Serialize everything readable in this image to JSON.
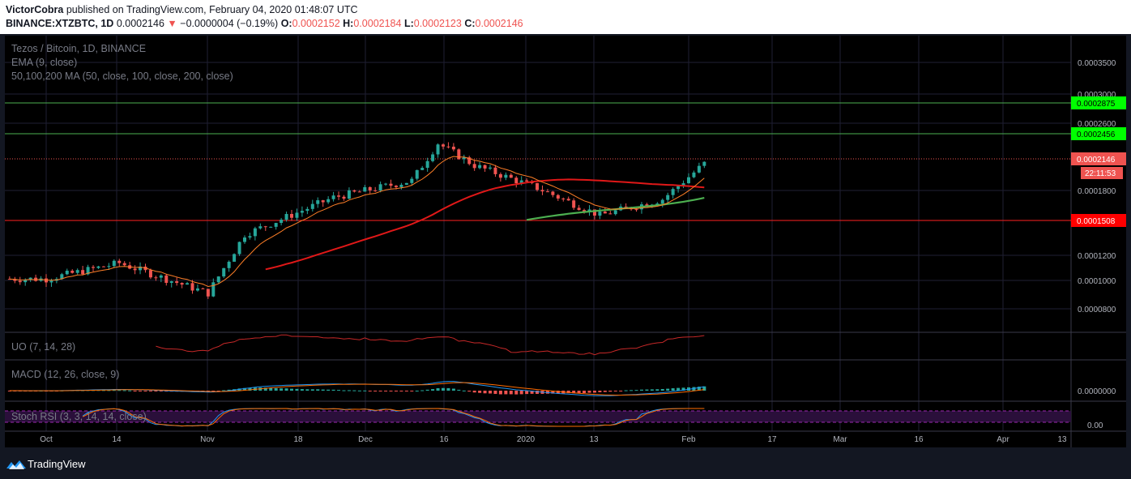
{
  "header": {
    "publisher": "VictorCobra",
    "published_text": "published on TradingView.com, February 04, 2020 01:48:07 UTC",
    "symbol": "BINANCE:XTZBTC, 1D",
    "price": "0.0002146",
    "change_arrow": "▼",
    "change": "−0.0000004 (−0.19%)",
    "o_label": "O:",
    "o_value": "0.0002152",
    "h_label": "H:",
    "h_value": "0.0002184",
    "l_label": "L:",
    "l_value": "0.0002123",
    "c_label": "C:",
    "c_value": "0.0002146"
  },
  "legend": {
    "title": "Tezos / Bitcoin, 1D, BINANCE",
    "ema": "EMA (9, close)",
    "ma": "50,100,200 MA (50, close, 100, close, 200, close)"
  },
  "indicators": {
    "uo": "UO (7, 14, 28)",
    "macd": "MACD (12, 26, close, 9)",
    "stoch": "Stoch RSI (3, 3, 14, 14, close)",
    "macd_value": "0.0000000",
    "stoch_value": "0.00"
  },
  "price_labels": {
    "ticks": [
      "0.0003500",
      "0.0003000",
      "0.0002600",
      "0.0001800",
      "0.0001200",
      "0.0001000",
      "0.0000800"
    ],
    "level1": "0.0002875",
    "level2": "0.0002456",
    "current": "0.0002146",
    "countdown": "22:11:53",
    "level3": "0.0001508"
  },
  "time_labels": [
    "Oct",
    "14",
    "Nov",
    "18",
    "Dec",
    "16",
    "2020",
    "13",
    "Feb",
    "17",
    "Mar",
    "16",
    "Apr",
    "13"
  ],
  "footer": {
    "brand": "TradingView"
  },
  "colors": {
    "green_level": "#4caf50",
    "bright_green": "#00ff00",
    "red_level": "#ff0000",
    "up": "#26a69a",
    "down": "#ef5350",
    "ema": "#ff7f27",
    "ma50": "#e91e1e",
    "ma100": "#4caf50"
  },
  "chart_data": {
    "type": "candlestick",
    "scale": "log",
    "series": [
      {
        "name": "EMA (9, close)"
      },
      {
        "name": "50,100,200 MA (50, close, 100, close, 200, close)"
      }
    ],
    "horizontal_levels": [
      0.0002875,
      0.0002456,
      0.0001508
    ],
    "current_price": 0.0002146,
    "close_approx": [
      {
        "date": "2019-10-01",
        "close": 0.000101
      },
      {
        "date": "2019-10-15",
        "close": 0.000112
      },
      {
        "date": "2019-11-01",
        "close": 9.2e-05
      },
      {
        "date": "2019-11-08",
        "close": 0.000135
      },
      {
        "date": "2019-11-25",
        "close": 0.000172
      },
      {
        "date": "2019-12-10",
        "close": 0.000192
      },
      {
        "date": "2019-12-15",
        "close": 0.000245
      },
      {
        "date": "2019-12-22",
        "close": 0.000212
      },
      {
        "date": "2020-01-03",
        "close": 0.000183
      },
      {
        "date": "2020-01-15",
        "close": 0.000153
      },
      {
        "date": "2020-01-27",
        "close": 0.00017
      },
      {
        "date": "2020-02-04",
        "close": 0.0002146
      }
    ]
  }
}
